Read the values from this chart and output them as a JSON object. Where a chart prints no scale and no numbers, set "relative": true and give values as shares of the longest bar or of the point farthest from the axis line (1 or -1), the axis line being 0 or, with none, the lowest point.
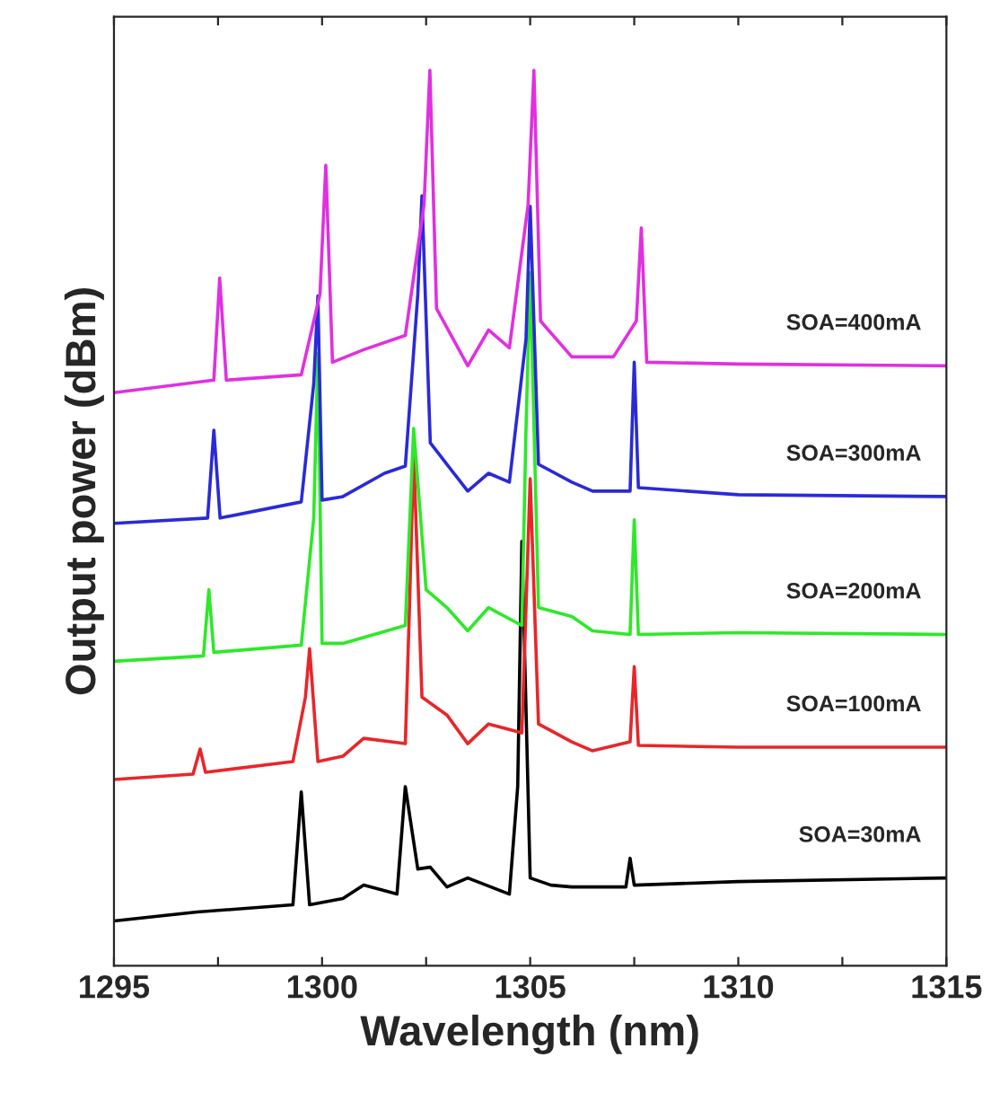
{
  "chart_data": {
    "type": "line",
    "xlabel": "Wavelength (nm)",
    "ylabel": "Output power (dBm)",
    "relative": true,
    "xlim": [
      1295,
      1315
    ],
    "xticks": [
      1295,
      {
        "value": 1297.5,
        "label": null
      },
      1300,
      {
        "value": 1302.5,
        "label": null
      },
      1305,
      {
        "value": 1307.5,
        "label": null
      },
      1310,
      {
        "value": 1312.5,
        "label": null
      },
      1315
    ],
    "grid": false,
    "legend": false,
    "marker": "none",
    "line_style": "solid",
    "series": [
      {
        "name": "SOA=30mA",
        "color": "#000000",
        "x": [
          1295,
          1297,
          1299.3,
          1299.5,
          1299.7,
          1300.5,
          1301,
          1301.8,
          1302.0,
          1302.1,
          1302.3,
          1302.6,
          1303,
          1303.5,
          1304.5,
          1304.7,
          1304.8,
          1305.0,
          1305.5,
          1306,
          1307.3,
          1307.4,
          1307.5,
          1310,
          1315
        ],
        "values": [
          0.05,
          0.06,
          0.068,
          0.194,
          0.068,
          0.075,
          0.09,
          0.08,
          0.2,
          null,
          0.108,
          0.11,
          0.088,
          0.098,
          0.08,
          0.2,
          0.474,
          0.098,
          0.09,
          0.088,
          0.088,
          0.12,
          0.09,
          0.094,
          0.098
        ]
      },
      {
        "name": "SOA=100mA",
        "color": "#e8262a",
        "x": [
          1295,
          1296.9,
          1297.07,
          1297.2,
          1299.3,
          1299.6,
          1299.7,
          1299.9,
          1300.5,
          1301,
          1302,
          1302.1,
          1302.2,
          1302.4,
          1303,
          1303.5,
          1304,
          1304.8,
          1304.9,
          1305.0,
          1305.2,
          1306,
          1306.5,
          1307.4,
          1307.5,
          1307.6,
          1310,
          1315
        ],
        "values": [
          0.208,
          0.214,
          0.242,
          0.216,
          0.228,
          0.3,
          0.354,
          0.228,
          0.234,
          0.254,
          0.248,
          0.4,
          0.574,
          0.3,
          0.28,
          0.248,
          0.27,
          0.26,
          0.4,
          0.544,
          0.27,
          0.25,
          0.24,
          0.25,
          0.334,
          0.246,
          0.244,
          0.244
        ]
      },
      {
        "name": "SOA=200mA",
        "color": "#2ee82a",
        "x": [
          1295,
          1297.15,
          1297.28,
          1297.4,
          1299.5,
          1299.8,
          1299.9,
          1300.0,
          1300.5,
          1302,
          1302.2,
          1302.3,
          1302.5,
          1303,
          1303.5,
          1304,
          1304.8,
          1304.9,
          1305.0,
          1305.2,
          1306,
          1306.5,
          1307.4,
          1307.5,
          1307.6,
          1310,
          1315
        ],
        "values": [
          0.34,
          0.346,
          0.42,
          0.35,
          0.358,
          0.5,
          0.684,
          0.36,
          0.36,
          0.38,
          0.6,
          null,
          0.42,
          0.4,
          0.374,
          0.4,
          0.38,
          0.6,
          0.774,
          0.4,
          0.39,
          0.374,
          0.37,
          0.498,
          0.37,
          0.372,
          0.37
        ]
      },
      {
        "name": "SOA=300mA",
        "color": "#2a2ad8",
        "x": [
          1295,
          1297.25,
          1297.4,
          1297.55,
          1299.5,
          1299.8,
          1299.9,
          1300.0,
          1300.5,
          1301.5,
          1302,
          1302.3,
          1302.4,
          1302.6,
          1303,
          1303.5,
          1304,
          1304.5,
          1304.9,
          1305.0,
          1305.2,
          1306,
          1306.5,
          1307.4,
          1307.5,
          1307.6,
          1310,
          1315
        ],
        "values": [
          0.494,
          0.5,
          0.598,
          0.5,
          0.518,
          0.65,
          0.748,
          0.52,
          0.524,
          0.55,
          0.558,
          0.75,
          0.86,
          0.584,
          0.56,
          0.53,
          0.55,
          0.54,
          0.7,
          0.848,
          0.56,
          0.54,
          0.53,
          0.53,
          0.674,
          0.534,
          0.526,
          0.524
        ]
      },
      {
        "name": "SOA=400mA",
        "color": "#e030e0",
        "x": [
          1295,
          1297.4,
          1297.54,
          1297.7,
          1299.5,
          1299.95,
          1300.09,
          1300.25,
          1301,
          1302,
          1302.45,
          1302.59,
          1302.75,
          1303.5,
          1304,
          1304.5,
          1304.95,
          1305.09,
          1305.25,
          1306,
          1307,
          1307.55,
          1307.67,
          1307.8,
          1310,
          1315
        ],
        "values": [
          0.64,
          0.654,
          0.768,
          0.654,
          0.66,
          0.75,
          0.894,
          0.674,
          0.688,
          0.704,
          0.85,
          1,
          0.734,
          0.67,
          0.71,
          0.69,
          0.85,
          1,
          0.72,
          0.68,
          0.68,
          0.72,
          0.824,
          0.674,
          0.672,
          0.67
        ]
      }
    ]
  }
}
